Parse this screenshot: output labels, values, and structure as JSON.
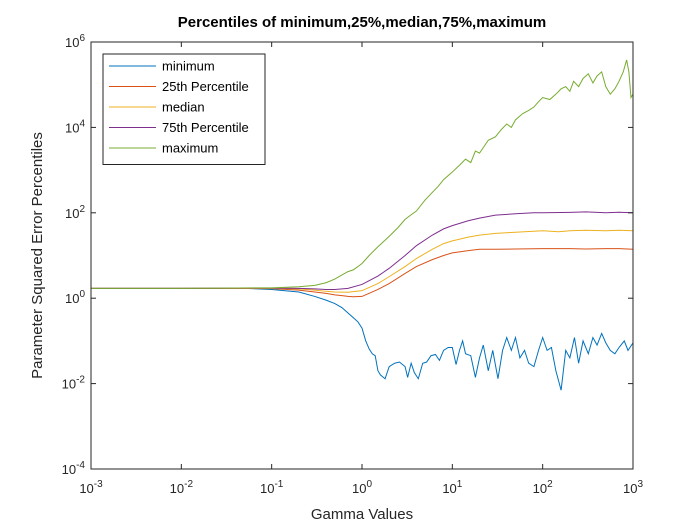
{
  "chart_data": {
    "type": "line",
    "title": "Percentiles of minimum,25%,median,75%,maximum",
    "xlabel": "Gamma Values",
    "ylabel": "Parameter Squared Error Percentiles",
    "xscale": "log",
    "yscale": "log",
    "xlim": [
      0.001,
      1000
    ],
    "ylim": [
      0.0001,
      1000000
    ],
    "x_ticks": [
      {
        "value": 0.001,
        "base": "10",
        "exp": "-3"
      },
      {
        "value": 0.01,
        "base": "10",
        "exp": "-2"
      },
      {
        "value": 0.1,
        "base": "10",
        "exp": "-1"
      },
      {
        "value": 1,
        "base": "10",
        "exp": "0"
      },
      {
        "value": 10,
        "base": "10",
        "exp": "1"
      },
      {
        "value": 100,
        "base": "10",
        "exp": "2"
      },
      {
        "value": 1000,
        "base": "10",
        "exp": "3"
      }
    ],
    "y_ticks": [
      {
        "value": 0.0001,
        "base": "10",
        "exp": "-4"
      },
      {
        "value": 0.01,
        "base": "10",
        "exp": "-2"
      },
      {
        "value": 1,
        "base": "10",
        "exp": "0"
      },
      {
        "value": 100,
        "base": "10",
        "exp": "2"
      },
      {
        "value": 10000,
        "base": "10",
        "exp": "4"
      },
      {
        "value": 1000000,
        "base": "10",
        "exp": "6"
      }
    ],
    "grid": false,
    "legend_position": "top-left",
    "series": [
      {
        "name": "minimum",
        "color": "#0072BD",
        "points": [
          [
            0.001,
            1.7
          ],
          [
            0.01,
            1.7
          ],
          [
            0.05,
            1.7
          ],
          [
            0.1,
            1.6
          ],
          [
            0.2,
            1.4
          ],
          [
            0.3,
            1.1
          ],
          [
            0.4,
            0.9
          ],
          [
            0.5,
            0.75
          ],
          [
            0.6,
            0.6
          ],
          [
            0.7,
            0.45
          ],
          [
            0.8,
            0.35
          ],
          [
            0.9,
            0.28
          ],
          [
            1.0,
            0.2
          ],
          [
            1.1,
            0.1
          ],
          [
            1.2,
            0.065
          ],
          [
            1.3,
            0.05
          ],
          [
            1.4,
            0.045
          ],
          [
            1.5,
            0.02
          ],
          [
            1.6,
            0.016
          ],
          [
            1.8,
            0.013
          ],
          [
            2.0,
            0.025
          ],
          [
            2.3,
            0.03
          ],
          [
            2.6,
            0.032
          ],
          [
            3.0,
            0.025
          ],
          [
            3.2,
            0.014
          ],
          [
            3.5,
            0.03
          ],
          [
            3.8,
            0.018
          ],
          [
            4.2,
            0.013
          ],
          [
            4.7,
            0.03
          ],
          [
            5.2,
            0.032
          ],
          [
            5.8,
            0.045
          ],
          [
            6.5,
            0.048
          ],
          [
            7.2,
            0.035
          ],
          [
            8.0,
            0.06
          ],
          [
            9.0,
            0.07
          ],
          [
            10,
            0.07
          ],
          [
            11,
            0.028
          ],
          [
            12,
            0.06
          ],
          [
            13,
            0.1
          ],
          [
            14,
            0.05
          ],
          [
            16,
            0.045
          ],
          [
            18,
            0.014
          ],
          [
            20,
            0.04
          ],
          [
            22,
            0.08
          ],
          [
            25,
            0.02
          ],
          [
            28,
            0.06
          ],
          [
            32,
            0.013
          ],
          [
            36,
            0.06
          ],
          [
            40,
            0.12
          ],
          [
            45,
            0.06
          ],
          [
            50,
            0.12
          ],
          [
            56,
            0.04
          ],
          [
            63,
            0.06
          ],
          [
            70,
            0.03
          ],
          [
            80,
            0.025
          ],
          [
            90,
            0.06
          ],
          [
            100,
            0.12
          ],
          [
            112,
            0.06
          ],
          [
            125,
            0.07
          ],
          [
            140,
            0.02
          ],
          [
            160,
            0.007
          ],
          [
            180,
            0.06
          ],
          [
            200,
            0.04
          ],
          [
            225,
            0.12
          ],
          [
            250,
            0.03
          ],
          [
            280,
            0.1
          ],
          [
            320,
            0.05
          ],
          [
            360,
            0.12
          ],
          [
            400,
            0.08
          ],
          [
            450,
            0.15
          ],
          [
            500,
            0.09
          ],
          [
            560,
            0.06
          ],
          [
            630,
            0.05
          ],
          [
            700,
            0.07
          ],
          [
            800,
            0.1
          ],
          [
            880,
            0.06
          ],
          [
            1000,
            0.09
          ]
        ]
      },
      {
        "name": "25th Percentile",
        "color": "#D95319",
        "points": [
          [
            0.001,
            1.7
          ],
          [
            0.01,
            1.7
          ],
          [
            0.1,
            1.68
          ],
          [
            0.2,
            1.55
          ],
          [
            0.3,
            1.4
          ],
          [
            0.4,
            1.3
          ],
          [
            0.5,
            1.2
          ],
          [
            0.6,
            1.15
          ],
          [
            0.7,
            1.1
          ],
          [
            0.8,
            1.08
          ],
          [
            1.0,
            1.1
          ],
          [
            1.2,
            1.3
          ],
          [
            1.5,
            1.6
          ],
          [
            2.0,
            2.2
          ],
          [
            3.0,
            3.8
          ],
          [
            4.0,
            5.5
          ],
          [
            6.0,
            8.0
          ],
          [
            8.0,
            10
          ],
          [
            10,
            11.5
          ],
          [
            15,
            13
          ],
          [
            20,
            14
          ],
          [
            30,
            14
          ],
          [
            50,
            14.2
          ],
          [
            100,
            14.5
          ],
          [
            200,
            14.5
          ],
          [
            300,
            14.2
          ],
          [
            500,
            14.5
          ],
          [
            700,
            14.5
          ],
          [
            1000,
            14
          ]
        ]
      },
      {
        "name": "median",
        "color": "#EDB120",
        "points": [
          [
            0.001,
            1.7
          ],
          [
            0.01,
            1.7
          ],
          [
            0.1,
            1.7
          ],
          [
            0.2,
            1.65
          ],
          [
            0.3,
            1.55
          ],
          [
            0.4,
            1.45
          ],
          [
            0.5,
            1.4
          ],
          [
            0.7,
            1.38
          ],
          [
            1.0,
            1.5
          ],
          [
            1.5,
            2.2
          ],
          [
            2.0,
            3.2
          ],
          [
            3.0,
            5.5
          ],
          [
            4.0,
            8.5
          ],
          [
            6.0,
            14
          ],
          [
            8.0,
            19
          ],
          [
            10,
            22
          ],
          [
            15,
            27
          ],
          [
            20,
            30
          ],
          [
            30,
            33
          ],
          [
            50,
            35
          ],
          [
            100,
            38
          ],
          [
            150,
            36
          ],
          [
            200,
            38
          ],
          [
            300,
            39
          ],
          [
            500,
            38
          ],
          [
            700,
            39
          ],
          [
            1000,
            38
          ]
        ]
      },
      {
        "name": "75th Percentile",
        "color": "#7E2F8E",
        "points": [
          [
            0.001,
            1.7
          ],
          [
            0.01,
            1.7
          ],
          [
            0.1,
            1.72
          ],
          [
            0.2,
            1.7
          ],
          [
            0.3,
            1.65
          ],
          [
            0.4,
            1.6
          ],
          [
            0.5,
            1.6
          ],
          [
            0.7,
            1.7
          ],
          [
            1.0,
            2.1
          ],
          [
            1.5,
            3.3
          ],
          [
            2.0,
            5.0
          ],
          [
            3.0,
            10
          ],
          [
            4.0,
            17
          ],
          [
            6.0,
            30
          ],
          [
            8.0,
            42
          ],
          [
            10,
            50
          ],
          [
            15,
            65
          ],
          [
            20,
            75
          ],
          [
            30,
            88
          ],
          [
            50,
            95
          ],
          [
            80,
            100
          ],
          [
            100,
            100
          ],
          [
            200,
            102
          ],
          [
            300,
            105
          ],
          [
            500,
            100
          ],
          [
            700,
            103
          ],
          [
            1000,
            100
          ]
        ]
      },
      {
        "name": "maximum",
        "color": "#77AC30",
        "points": [
          [
            0.001,
            1.7
          ],
          [
            0.01,
            1.7
          ],
          [
            0.1,
            1.75
          ],
          [
            0.2,
            1.85
          ],
          [
            0.3,
            2.0
          ],
          [
            0.4,
            2.3
          ],
          [
            0.5,
            2.8
          ],
          [
            0.6,
            3.5
          ],
          [
            0.7,
            4.2
          ],
          [
            0.8,
            4.6
          ],
          [
            0.9,
            5.5
          ],
          [
            1.0,
            6.5
          ],
          [
            1.2,
            10
          ],
          [
            1.5,
            16
          ],
          [
            2.0,
            28
          ],
          [
            2.5,
            45
          ],
          [
            3.0,
            70
          ],
          [
            3.5,
            90
          ],
          [
            4.0,
            110
          ],
          [
            5.0,
            200
          ],
          [
            6.0,
            300
          ],
          [
            7.0,
            420
          ],
          [
            8.0,
            600
          ],
          [
            10,
            900
          ],
          [
            12,
            1300
          ],
          [
            14,
            1800
          ],
          [
            16,
            1500
          ],
          [
            18,
            2800
          ],
          [
            20,
            2500
          ],
          [
            25,
            5000
          ],
          [
            30,
            6000
          ],
          [
            35,
            9000
          ],
          [
            40,
            12000
          ],
          [
            45,
            10000
          ],
          [
            50,
            15000
          ],
          [
            60,
            21000
          ],
          [
            70,
            25000
          ],
          [
            80,
            30000
          ],
          [
            90,
            40000
          ],
          [
            100,
            50000
          ],
          [
            120,
            45000
          ],
          [
            140,
            60000
          ],
          [
            160,
            80000
          ],
          [
            180,
            90000
          ],
          [
            200,
            70000
          ],
          [
            220,
            120000
          ],
          [
            250,
            90000
          ],
          [
            280,
            140000
          ],
          [
            320,
            180000
          ],
          [
            360,
            110000
          ],
          [
            400,
            160000
          ],
          [
            450,
            200000
          ],
          [
            500,
            90000
          ],
          [
            560,
            60000
          ],
          [
            630,
            80000
          ],
          [
            700,
            120000
          ],
          [
            780,
            200000
          ],
          [
            850,
            380000
          ],
          [
            900,
            200000
          ],
          [
            950,
            50000
          ],
          [
            1000,
            60000
          ]
        ]
      }
    ]
  }
}
